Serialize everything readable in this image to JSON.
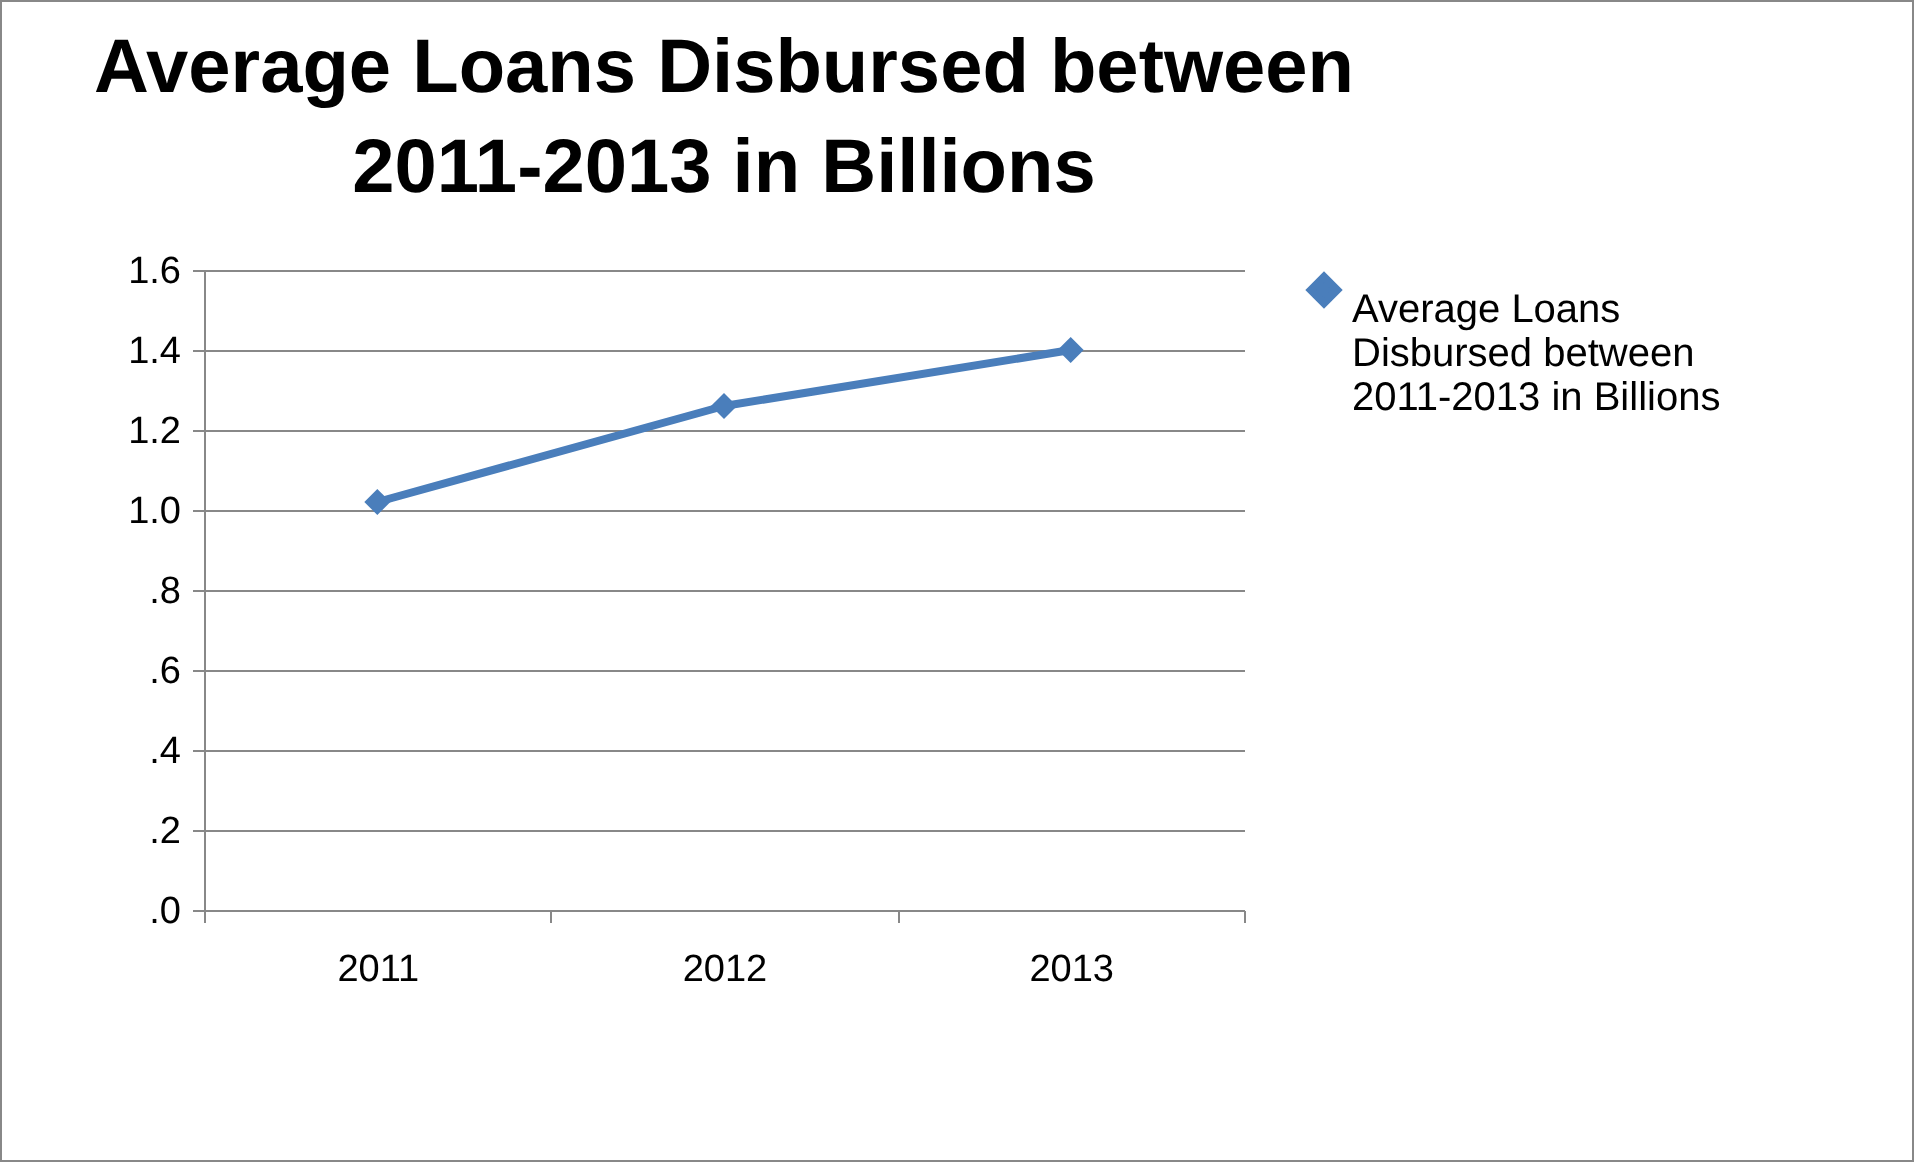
{
  "chart_data": {
    "type": "line",
    "title": "Average Loans Disbursed between 2011-2013 in Billions",
    "categories": [
      "2011",
      "2012",
      "2013"
    ],
    "series": [
      {
        "name": "Average Loans Disbursed between 2011-2013 in Billions",
        "color": "#4a7ebb",
        "values": [
          1.02,
          1.26,
          1.4
        ]
      }
    ],
    "ylim": [
      0,
      1.6
    ],
    "yticks": [
      {
        "value": 0,
        "label": ".0"
      },
      {
        "value": 0.2,
        "label": ".2"
      },
      {
        "value": 0.4,
        "label": ".4"
      },
      {
        "value": 0.6,
        "label": ".6"
      },
      {
        "value": 0.8,
        "label": ".8"
      },
      {
        "value": 1.0,
        "label": "1.0"
      },
      {
        "value": 1.2,
        "label": "1.2"
      },
      {
        "value": 1.4,
        "label": "1.4"
      },
      {
        "value": 1.6,
        "label": "1.6"
      }
    ],
    "grid": "y",
    "legend": "right",
    "marker": "diamond",
    "line_style": "solid"
  }
}
